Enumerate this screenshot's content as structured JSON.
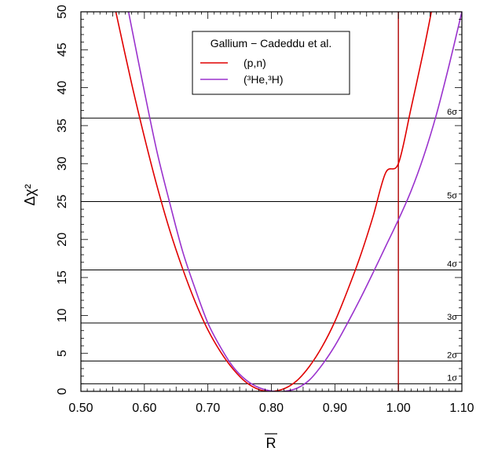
{
  "chart_data": {
    "type": "line",
    "title": "",
    "xlabel": "R",
    "ylabel": "Δχ²",
    "xlim": [
      0.5,
      1.1
    ],
    "ylim": [
      0,
      50
    ],
    "x_ticks": [
      "0.50",
      "0.60",
      "0.70",
      "0.80",
      "0.90",
      "1.00",
      "1.10"
    ],
    "y_ticks": [
      "0",
      "5",
      "10",
      "15",
      "20",
      "25",
      "30",
      "35",
      "40",
      "45",
      "50"
    ],
    "legend": {
      "title": "Gallium − Cadeddu et al.",
      "placement": "top-center"
    },
    "series": [
      {
        "name": "(p,n)",
        "color": "#e00000",
        "x": [
          0.555,
          0.58,
          0.6,
          0.62,
          0.64,
          0.66,
          0.68,
          0.7,
          0.72,
          0.74,
          0.76,
          0.78,
          0.8,
          0.82,
          0.84,
          0.86,
          0.88,
          0.9,
          0.92,
          0.94,
          0.96,
          0.98,
          1.0,
          1.02,
          1.04,
          1.052
        ],
        "y": [
          50,
          40.5,
          33.5,
          27,
          21.2,
          16.2,
          11.8,
          8.1,
          5.2,
          2.9,
          1.2,
          0.25,
          0,
          0.35,
          1.4,
          3.3,
          5.9,
          9.2,
          13.3,
          17.8,
          23,
          28.8,
          30,
          37.3,
          45,
          50
        ]
      },
      {
        "name": "(³He,³H)",
        "color": "#9a32cd",
        "x": [
          0.575,
          0.6,
          0.62,
          0.64,
          0.66,
          0.68,
          0.7,
          0.72,
          0.74,
          0.76,
          0.78,
          0.8,
          0.82,
          0.84,
          0.86,
          0.88,
          0.9,
          0.92,
          0.94,
          0.96,
          0.98,
          1.0,
          1.02,
          1.04,
          1.06,
          1.08,
          1.1
        ],
        "y": [
          50,
          39.5,
          31.5,
          24.8,
          18.5,
          13.5,
          9,
          5.8,
          3.2,
          1.5,
          0.5,
          0.05,
          0,
          0.4,
          1.5,
          3.5,
          6,
          9,
          12.2,
          15.6,
          19.1,
          22.6,
          26.4,
          31,
          36.5,
          43,
          50
        ]
      }
    ],
    "reference_lines": [
      {
        "y": 1,
        "label": "1σ"
      },
      {
        "y": 4,
        "label": "2σ"
      },
      {
        "y": 9,
        "label": "3σ"
      },
      {
        "y": 16,
        "label": "4σ"
      },
      {
        "y": 25,
        "label": "5σ"
      },
      {
        "y": 36,
        "label": "6σ"
      }
    ],
    "vertical_line": {
      "x": 1.0,
      "color": "#b00000"
    },
    "grid": false
  }
}
